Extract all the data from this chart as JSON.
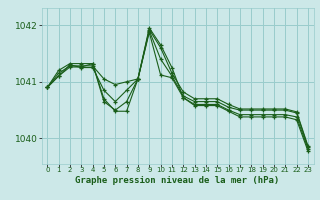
{
  "title": "Graphe pression niveau de la mer (hPa)",
  "bg_color": "#cce8e8",
  "grid_color": "#99cccc",
  "line_color": "#1a5e1a",
  "xlim": [
    -0.5,
    23.5
  ],
  "ylim": [
    1039.55,
    1042.3
  ],
  "yticks": [
    1040,
    1041,
    1042
  ],
  "xticks": [
    0,
    1,
    2,
    3,
    4,
    5,
    6,
    7,
    8,
    9,
    10,
    11,
    12,
    13,
    14,
    15,
    16,
    17,
    18,
    19,
    20,
    21,
    22,
    23
  ],
  "series": [
    [
      1040.9,
      1041.1,
      1041.3,
      1041.25,
      1041.25,
      1040.85,
      1040.65,
      1040.85,
      1041.05,
      1041.9,
      1041.4,
      1041.1,
      1040.75,
      1040.65,
      1040.65,
      1040.65,
      1040.55,
      1040.5,
      1040.5,
      1040.5,
      1040.5,
      1040.5,
      1040.45,
      1039.85
    ],
    [
      1040.9,
      1041.15,
      1041.28,
      1041.28,
      1041.28,
      1041.05,
      1040.95,
      1041.0,
      1041.05,
      1041.92,
      1041.6,
      1041.15,
      1040.82,
      1040.7,
      1040.7,
      1040.7,
      1040.6,
      1040.52,
      1040.52,
      1040.52,
      1040.52,
      1040.52,
      1040.47,
      1039.87
    ],
    [
      1040.9,
      1041.2,
      1041.32,
      1041.32,
      1041.32,
      1040.65,
      1040.5,
      1040.65,
      1041.05,
      1041.95,
      1041.65,
      1041.25,
      1040.72,
      1040.6,
      1040.6,
      1040.6,
      1040.5,
      1040.42,
      1040.42,
      1040.42,
      1040.42,
      1040.42,
      1040.38,
      1039.82
    ],
    [
      1040.9,
      1041.1,
      1041.26,
      1041.26,
      1041.32,
      1040.7,
      1040.48,
      1040.48,
      1041.05,
      1041.87,
      1041.12,
      1041.07,
      1040.72,
      1040.58,
      1040.58,
      1040.58,
      1040.48,
      1040.38,
      1040.38,
      1040.38,
      1040.38,
      1040.38,
      1040.33,
      1039.78
    ]
  ]
}
